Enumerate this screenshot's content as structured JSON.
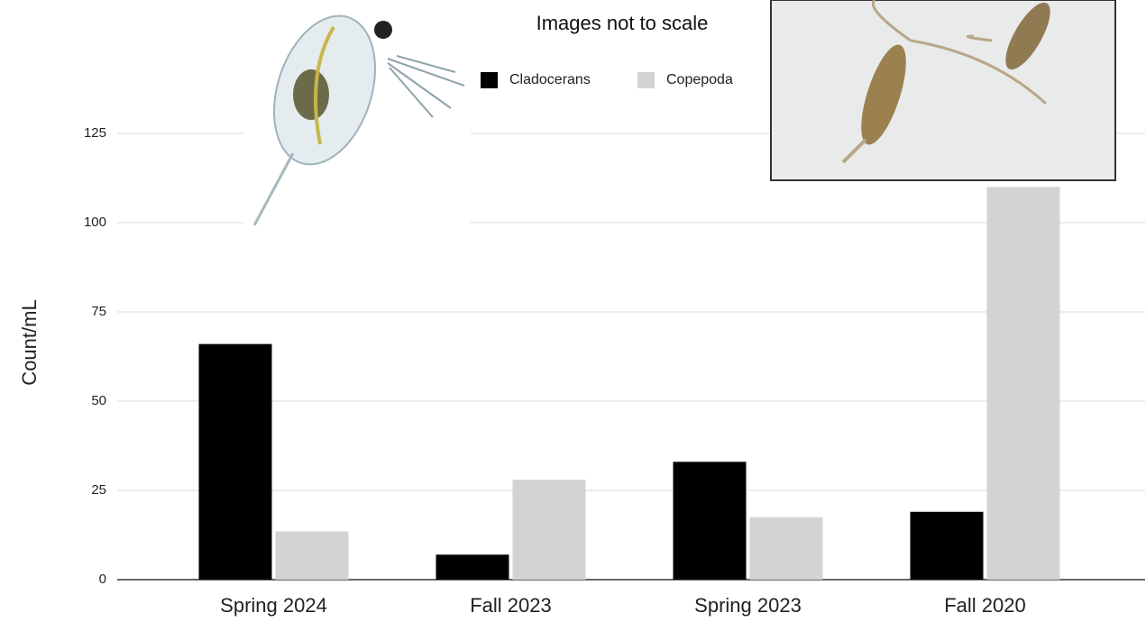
{
  "chart_data": {
    "type": "bar",
    "annotation": "Images not to scale",
    "y_label": "Count/mL",
    "categories": [
      "Spring 2024",
      "Fall 2023",
      "Spring 2023",
      "Fall 2020"
    ],
    "series": [
      {
        "name": "Cladocerans",
        "color": "#000000",
        "values": [
          66,
          7,
          33,
          19
        ]
      },
      {
        "name": "Copepoda",
        "color": "#d3d3d3",
        "values": [
          13.5,
          28,
          17.5,
          110
        ]
      }
    ],
    "ylim": [
      0,
      125
    ],
    "yticks": [
      0,
      25,
      50,
      75,
      100,
      125
    ],
    "grid": true
  }
}
